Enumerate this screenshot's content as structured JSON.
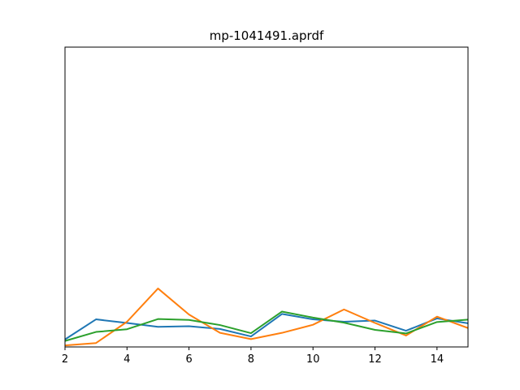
{
  "chart_data": {
    "type": "line",
    "title": "mp-1041491.aprdf",
    "xlabel": "",
    "ylabel": "",
    "xlim": [
      2,
      15
    ],
    "ylim": [
      0,
      1
    ],
    "grid": false,
    "x": [
      2,
      3,
      4,
      5,
      6,
      7,
      8,
      9,
      10,
      11,
      12,
      13,
      14,
      15
    ],
    "x_ticks": [
      2,
      4,
      6,
      8,
      10,
      12,
      14
    ],
    "series": [
      {
        "color": "#1f77b4",
        "values": [
          0.025,
          0.092,
          0.08,
          0.067,
          0.069,
          0.06,
          0.035,
          0.11,
          0.092,
          0.084,
          0.088,
          0.054,
          0.095,
          0.079
        ]
      },
      {
        "color": "#ff7f0e",
        "values": [
          0.005,
          0.013,
          0.084,
          0.195,
          0.108,
          0.047,
          0.026,
          0.047,
          0.074,
          0.125,
          0.08,
          0.038,
          0.101,
          0.063
        ]
      },
      {
        "color": "#2ca02c",
        "values": [
          0.02,
          0.05,
          0.059,
          0.093,
          0.09,
          0.073,
          0.046,
          0.118,
          0.098,
          0.081,
          0.057,
          0.045,
          0.083,
          0.091
        ]
      }
    ]
  }
}
